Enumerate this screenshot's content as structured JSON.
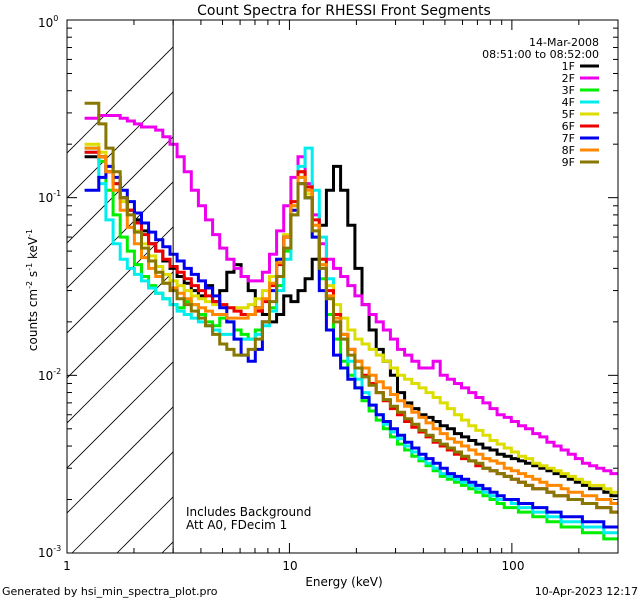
{
  "chart_data": {
    "type": "line",
    "title": "Count Spectra for RHESSI Front Segments",
    "xlabel": "Energy (keV)",
    "ylabel": "counts cm",
    "ylabel_sup1": "-2",
    "ylabel_s": " s",
    "ylabel_sup2": "-1",
    "ylabel_kev": " keV",
    "ylabel_sup3": "-1",
    "x_scale": "log",
    "y_scale": "log",
    "xlim": [
      1,
      300
    ],
    "ylim": [
      0.001,
      1
    ],
    "x_tick_labels": [
      "1",
      "10",
      "100"
    ],
    "y_tick_labels": [
      {
        "base": "10",
        "exp": "-3"
      },
      {
        "base": "10",
        "exp": "-2"
      },
      {
        "base": "10",
        "exp": "-1"
      },
      {
        "base": "10",
        "exp": "0"
      }
    ],
    "hatched_region": [
      1,
      3
    ],
    "date": "14-Mar-2008",
    "time_range": "08:51:00 to 08:52:00",
    "annotation_line1": "Includes Background",
    "annotation_line2": "Att A0, FDecim 1",
    "footer_left": "Generated by hsi_min_spectra_plot.pro",
    "footer_right": "10-Apr-2023 12:17",
    "series": [
      {
        "name": "1F",
        "color": "#000000",
        "values": [
          0.17,
          0.17,
          0.17,
          0.14,
          0.12,
          0.1,
          0.085,
          0.075,
          0.065,
          0.055,
          0.05,
          0.044,
          0.04,
          0.036,
          0.033,
          0.03,
          0.028,
          0.032,
          0.026,
          0.03,
          0.038,
          0.042,
          0.036,
          0.03,
          0.024,
          0.022,
          0.02,
          0.022,
          0.028,
          0.026,
          0.03,
          0.035,
          0.045,
          0.07,
          0.11,
          0.15,
          0.11,
          0.07,
          0.04,
          0.025,
          0.018,
          0.014,
          0.012,
          0.01,
          0.008,
          0.007,
          0.0065,
          0.006,
          0.0058,
          0.0055,
          0.0052,
          0.005,
          0.0047,
          0.0045,
          0.0043,
          0.0041,
          0.0039,
          0.0038,
          0.0036,
          0.0035,
          0.0034,
          0.0033,
          0.0032,
          0.0031,
          0.003,
          0.0029,
          0.0028,
          0.0027,
          0.0026,
          0.0025,
          0.0024,
          0.0023,
          0.0023,
          0.0022,
          0.0021
        ]
      },
      {
        "name": "2F",
        "color": "#ee00ee",
        "values": [
          0.28,
          0.28,
          0.29,
          0.29,
          0.29,
          0.28,
          0.27,
          0.26,
          0.25,
          0.25,
          0.24,
          0.22,
          0.2,
          0.17,
          0.14,
          0.11,
          0.09,
          0.075,
          0.062,
          0.052,
          0.045,
          0.04,
          0.036,
          0.034,
          0.034,
          0.038,
          0.048,
          0.065,
          0.09,
          0.13,
          0.17,
          0.12,
          0.08,
          0.055,
          0.045,
          0.04,
          0.036,
          0.032,
          0.028,
          0.025,
          0.022,
          0.02,
          0.018,
          0.016,
          0.014,
          0.013,
          0.012,
          0.011,
          0.011,
          0.012,
          0.01,
          0.0095,
          0.009,
          0.0085,
          0.008,
          0.0075,
          0.007,
          0.0065,
          0.006,
          0.0058,
          0.0055,
          0.0052,
          0.005,
          0.0047,
          0.0045,
          0.0042,
          0.004,
          0.0038,
          0.0036,
          0.0034,
          0.0032,
          0.0031,
          0.003,
          0.0029,
          0.0028
        ]
      },
      {
        "name": "3F",
        "color": "#00ee00",
        "values": [
          0.19,
          0.19,
          0.16,
          0.11,
          0.08,
          0.06,
          0.05,
          0.042,
          0.036,
          0.032,
          0.029,
          0.027,
          0.025,
          0.024,
          0.026,
          0.025,
          0.022,
          0.02,
          0.019,
          0.021,
          0.02,
          0.018,
          0.017,
          0.016,
          0.018,
          0.02,
          0.024,
          0.032,
          0.05,
          0.09,
          0.14,
          0.1,
          0.06,
          0.035,
          0.022,
          0.016,
          0.012,
          0.01,
          0.0085,
          0.0072,
          0.0063,
          0.0056,
          0.005,
          0.0045,
          0.0041,
          0.0038,
          0.0035,
          0.0033,
          0.0031,
          0.0029,
          0.0027,
          0.0026,
          0.0025,
          0.0024,
          0.0023,
          0.0022,
          0.0021,
          0.002,
          0.0019,
          0.0018,
          0.0018,
          0.0017,
          0.0017,
          0.0016,
          0.0016,
          0.0015,
          0.0015,
          0.0014,
          0.0014,
          0.0014,
          0.0013,
          0.0013,
          0.0013,
          0.0012,
          0.0012
        ]
      },
      {
        "name": "4F",
        "color": "#00eeee",
        "values": [
          0.18,
          0.18,
          0.12,
          0.075,
          0.055,
          0.045,
          0.04,
          0.037,
          0.034,
          0.031,
          0.029,
          0.027,
          0.025,
          0.023,
          0.022,
          0.021,
          0.02,
          0.019,
          0.018,
          0.017,
          0.017,
          0.016,
          0.016,
          0.016,
          0.017,
          0.019,
          0.023,
          0.03,
          0.045,
          0.08,
          0.15,
          0.19,
          0.11,
          0.06,
          0.035,
          0.022,
          0.016,
          0.012,
          0.0095,
          0.008,
          0.0068,
          0.006,
          0.0053,
          0.0048,
          0.0044,
          0.004,
          0.0037,
          0.0034,
          0.0032,
          0.003,
          0.0028,
          0.0027,
          0.0026,
          0.0025,
          0.0024,
          0.0023,
          0.0022,
          0.0021,
          0.002,
          0.002,
          0.0019,
          0.0018,
          0.0018,
          0.0017,
          0.0017,
          0.0016,
          0.0016,
          0.0015,
          0.0015,
          0.0015,
          0.0014,
          0.0014,
          0.0014,
          0.0013,
          0.0013
        ]
      },
      {
        "name": "5F",
        "color": "#dddd00",
        "values": [
          0.2,
          0.2,
          0.18,
          0.15,
          0.12,
          0.095,
          0.08,
          0.065,
          0.055,
          0.047,
          0.041,
          0.037,
          0.034,
          0.032,
          0.03,
          0.028,
          0.027,
          0.026,
          0.025,
          0.025,
          0.024,
          0.024,
          0.024,
          0.025,
          0.027,
          0.03,
          0.036,
          0.045,
          0.062,
          0.09,
          0.13,
          0.105,
          0.07,
          0.045,
          0.032,
          0.025,
          0.021,
          0.018,
          0.016,
          0.015,
          0.014,
          0.013,
          0.012,
          0.011,
          0.01,
          0.0095,
          0.009,
          0.0085,
          0.008,
          0.0075,
          0.007,
          0.0065,
          0.006,
          0.0056,
          0.0052,
          0.0049,
          0.0046,
          0.0043,
          0.0041,
          0.0039,
          0.0037,
          0.0035,
          0.0034,
          0.0032,
          0.0031,
          0.003,
          0.0029,
          0.0028,
          0.0027,
          0.0026,
          0.0025,
          0.0024,
          0.0024,
          0.0023,
          0.0022
        ]
      },
      {
        "name": "6F",
        "color": "#ee0000",
        "values": [
          0.18,
          0.18,
          0.17,
          0.14,
          0.12,
          0.1,
          0.085,
          0.072,
          0.062,
          0.055,
          0.05,
          0.045,
          0.041,
          0.038,
          0.035,
          0.032,
          0.03,
          0.028,
          0.026,
          0.025,
          0.024,
          0.023,
          0.022,
          0.022,
          0.023,
          0.026,
          0.032,
          0.042,
          0.06,
          0.095,
          0.14,
          0.115,
          0.075,
          0.045,
          0.03,
          0.022,
          0.017,
          0.014,
          0.012,
          0.01,
          0.009,
          0.008,
          0.0072,
          0.0065,
          0.006,
          0.0055,
          0.0051,
          0.0048,
          0.0045,
          0.0042,
          0.004,
          0.0038,
          0.0036,
          0.0034,
          0.0033,
          0.0031,
          0.003,
          0.0029,
          0.0028,
          0.0027,
          0.0026,
          0.0025,
          0.0024,
          0.0023,
          0.0023,
          0.0022,
          0.0021,
          0.0021,
          0.002,
          0.002,
          0.0019,
          0.0019,
          0.0018,
          0.0018,
          0.0017
        ]
      },
      {
        "name": "7F",
        "color": "#0000ee",
        "values": [
          0.11,
          0.11,
          0.13,
          0.15,
          0.13,
          0.11,
          0.095,
          0.082,
          0.072,
          0.064,
          0.058,
          0.053,
          0.048,
          0.044,
          0.04,
          0.037,
          0.034,
          0.031,
          0.028,
          0.024,
          0.02,
          0.016,
          0.013,
          0.012,
          0.014,
          0.02,
          0.03,
          0.045,
          0.06,
          0.085,
          0.12,
          0.1,
          0.06,
          0.03,
          0.018,
          0.013,
          0.011,
          0.0095,
          0.0085,
          0.0075,
          0.0068,
          0.006,
          0.0055,
          0.005,
          0.0046,
          0.0042,
          0.0039,
          0.0036,
          0.0034,
          0.0032,
          0.003,
          0.0028,
          0.0027,
          0.0026,
          0.0025,
          0.0024,
          0.0023,
          0.0022,
          0.0021,
          0.002,
          0.002,
          0.0019,
          0.0019,
          0.0018,
          0.0018,
          0.0017,
          0.0017,
          0.0016,
          0.0016,
          0.0016,
          0.0015,
          0.0015,
          0.0015,
          0.0014,
          0.0014
        ]
      },
      {
        "name": "8F",
        "color": "#ff8800",
        "values": [
          0.19,
          0.19,
          0.17,
          0.14,
          0.11,
          0.085,
          0.068,
          0.055,
          0.046,
          0.04,
          0.036,
          0.033,
          0.031,
          0.029,
          0.027,
          0.025,
          0.024,
          0.023,
          0.022,
          0.022,
          0.021,
          0.021,
          0.021,
          0.022,
          0.024,
          0.027,
          0.033,
          0.043,
          0.06,
          0.09,
          0.13,
          0.11,
          0.07,
          0.042,
          0.028,
          0.021,
          0.017,
          0.014,
          0.012,
          0.011,
          0.01,
          0.0092,
          0.0085,
          0.0078,
          0.0072,
          0.0067,
          0.0062,
          0.0058,
          0.0054,
          0.005,
          0.0047,
          0.0044,
          0.0042,
          0.004,
          0.0038,
          0.0036,
          0.0034,
          0.0033,
          0.0032,
          0.003,
          0.0029,
          0.0028,
          0.0027,
          0.0026,
          0.0025,
          0.0024,
          0.0024,
          0.0023,
          0.0022,
          0.0022,
          0.0021,
          0.0021,
          0.002,
          0.002,
          0.0019
        ]
      },
      {
        "name": "9F",
        "color": "#887700",
        "values": [
          0.34,
          0.34,
          0.26,
          0.19,
          0.14,
          0.1,
          0.08,
          0.064,
          0.052,
          0.044,
          0.038,
          0.033,
          0.03,
          0.027,
          0.025,
          0.023,
          0.021,
          0.019,
          0.017,
          0.015,
          0.014,
          0.013,
          0.013,
          0.014,
          0.016,
          0.02,
          0.026,
          0.036,
          0.052,
          0.08,
          0.12,
          0.1,
          0.065,
          0.04,
          0.027,
          0.02,
          0.016,
          0.013,
          0.011,
          0.0098,
          0.0088,
          0.008,
          0.0073,
          0.0067,
          0.0062,
          0.0057,
          0.0053,
          0.0049,
          0.0046,
          0.0043,
          0.0041,
          0.0039,
          0.0037,
          0.0035,
          0.0033,
          0.0032,
          0.003,
          0.0029,
          0.0028,
          0.0027,
          0.0026,
          0.0025,
          0.0024,
          0.0023,
          0.0023,
          0.0022,
          0.0021,
          0.0021,
          0.002,
          0.002,
          0.0019,
          0.0019,
          0.0018,
          0.0018,
          0.0017
        ]
      }
    ]
  }
}
